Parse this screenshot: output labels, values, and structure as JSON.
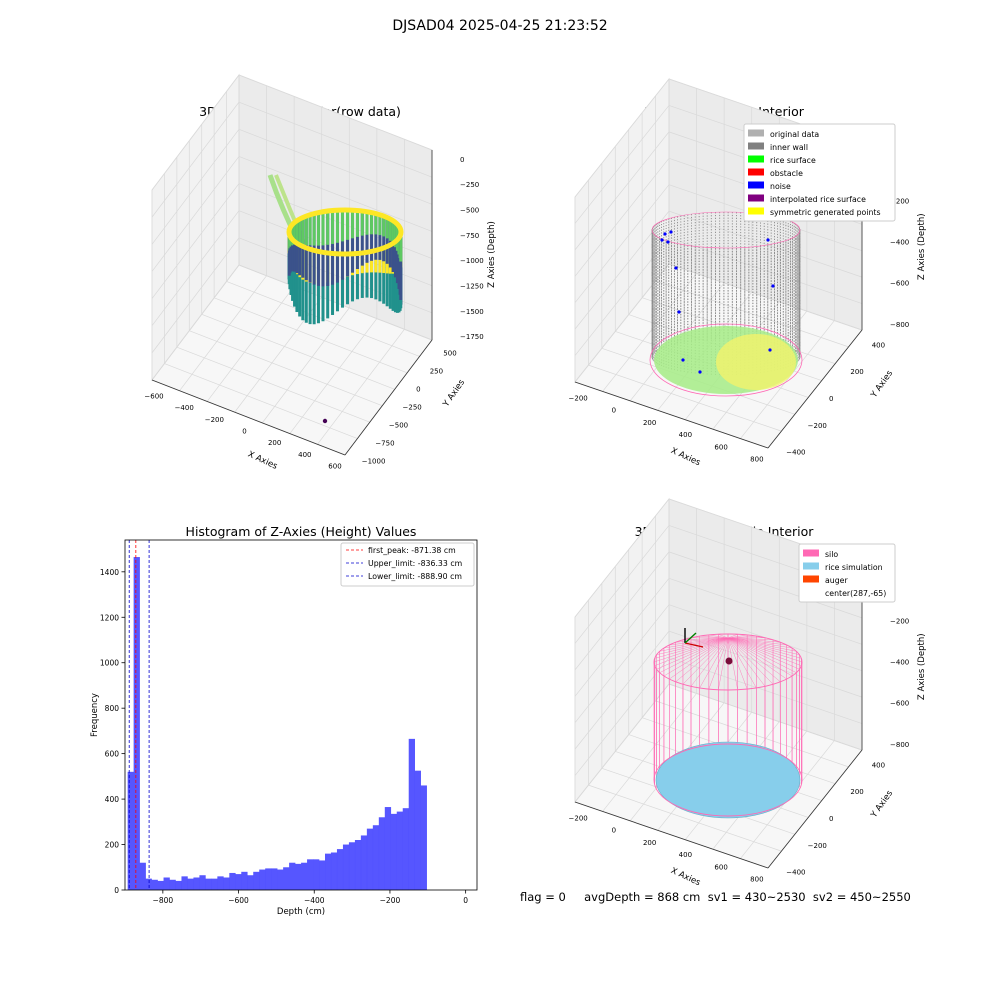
{
  "figure": {
    "suptitle": "DJSAD04 2025-04-25 21:23:52",
    "status_line": "flag = 0     avgDepth = 868 cm  sv1 = 430~2530  sv2 = 450~2550"
  },
  "colors": {
    "pane": "#f2f2f2",
    "grid": "#d9d9d9",
    "hist_bar": "#4d4dff",
    "peak_line": "#ff0000",
    "limit_line": "#0000cc",
    "viridis": [
      "#440154",
      "#3b528b",
      "#21918c",
      "#5ec962",
      "#fde725"
    ],
    "silo": "#ff69b4",
    "rice_sim": "#87ceeb",
    "auger": "#ff4500"
  },
  "chart_data": [
    {
      "type": "scatter",
      "title": "3D Plot of Silo Interior(row data)",
      "xlabel": "X Axies",
      "ylabel": "Y Axies",
      "zlabel": "Z Axies (Depth)",
      "x_ticks": [
        "−600",
        "−400",
        "−200",
        "0",
        "200",
        "400",
        "600"
      ],
      "y_ticks": [
        "−1000",
        "−750",
        "−500",
        "−250",
        "0",
        "250",
        "500"
      ],
      "z_ticks": [
        "−1750",
        "−1500",
        "−1250",
        "−1000",
        "−750",
        "−500",
        "−250",
        "0"
      ],
      "xlim": [
        -650,
        650
      ],
      "ylim": [
        -1050,
        600
      ],
      "zlim": [
        -1900,
        100
      ],
      "colormap": "viridis",
      "grid": true
    },
    {
      "type": "scatter",
      "title": "3D classify of Silo Interior",
      "xlabel": "X Axies",
      "ylabel": "Y Axies",
      "zlabel": "Z Axies (Depth)",
      "x_ticks": [
        "−200",
        "0",
        "200",
        "400",
        "600",
        "800"
      ],
      "y_ticks": [
        "−400",
        "−200",
        "0",
        "200",
        "400"
      ],
      "z_ticks": [
        "−800",
        "−600",
        "−400",
        "−200",
        "0"
      ],
      "xlim": [
        -250,
        820
      ],
      "ylim": [
        -500,
        450
      ],
      "zlim": [
        -950,
        50
      ],
      "legend_position": "top-right",
      "grid": true,
      "legend": [
        {
          "label": "original data",
          "color": "#b0b0b0"
        },
        {
          "label": "inner wall",
          "color": "#808080"
        },
        {
          "label": "rice surface",
          "color": "#00ff00"
        },
        {
          "label": "obstacle",
          "color": "#ff0000"
        },
        {
          "label": "noise",
          "color": "#0000ff"
        },
        {
          "label": "interpolated rice surface",
          "color": "#800080"
        },
        {
          "label": "symmetric generated points",
          "color": "#ffff00"
        }
      ]
    },
    {
      "type": "bar",
      "title": "Histogram of Z-Axies (Height) Values",
      "xlabel": "Depth (cm)",
      "ylabel": "Frequency",
      "x_ticks": [
        -800,
        -600,
        -400,
        -200,
        0
      ],
      "x_tick_labels": [
        "−800",
        "−600",
        "−400",
        "−200",
        "0"
      ],
      "y_ticks": [
        0,
        200,
        400,
        600,
        800,
        1000,
        1200,
        1400
      ],
      "xlim": [
        -900,
        30
      ],
      "ylim": [
        0,
        1540
      ],
      "bin_start": -893,
      "bin_width": 15.8,
      "values": [
        520,
        1465,
        120,
        50,
        45,
        40,
        55,
        45,
        40,
        60,
        50,
        55,
        65,
        50,
        50,
        60,
        55,
        75,
        70,
        80,
        65,
        80,
        90,
        95,
        95,
        90,
        100,
        120,
        115,
        120,
        135,
        135,
        130,
        160,
        165,
        180,
        200,
        210,
        220,
        240,
        270,
        285,
        320,
        365,
        335,
        345,
        360,
        665,
        525,
        460
      ],
      "vlines": [
        {
          "label": "first_peak: -871.38 cm",
          "x": -871.38,
          "color": "#ff0000"
        },
        {
          "label": "Upper_limit: -836.33 cm",
          "x": -836.33,
          "color": "#0000cc"
        },
        {
          "label": "Lower_limit: -888.90 cm",
          "x": -888.9,
          "color": "#0000cc"
        }
      ],
      "legend_position": "top-right",
      "grid": false
    },
    {
      "type": "scatter",
      "title": "3D simulation of Silo Interior",
      "xlabel": "X Axies",
      "ylabel": "Y Axies",
      "zlabel": "Z Axies (Depth)",
      "x_ticks": [
        "−200",
        "0",
        "200",
        "400",
        "600",
        "800"
      ],
      "y_ticks": [
        "−400",
        "−200",
        "0",
        "200",
        "400"
      ],
      "z_ticks": [
        "−800",
        "−600",
        "−400",
        "−200",
        "0"
      ],
      "xlim": [
        -250,
        820
      ],
      "ylim": [
        -500,
        450
      ],
      "zlim": [
        -950,
        50
      ],
      "legend_position": "top-right",
      "grid": true,
      "legend": [
        {
          "label": "silo",
          "color": "#ff69b4"
        },
        {
          "label": "rice simulation",
          "color": "#87ceeb"
        },
        {
          "label": "auger",
          "color": "#ff4500"
        },
        {
          "label": "center(287,-65)",
          "color": ""
        }
      ]
    }
  ]
}
